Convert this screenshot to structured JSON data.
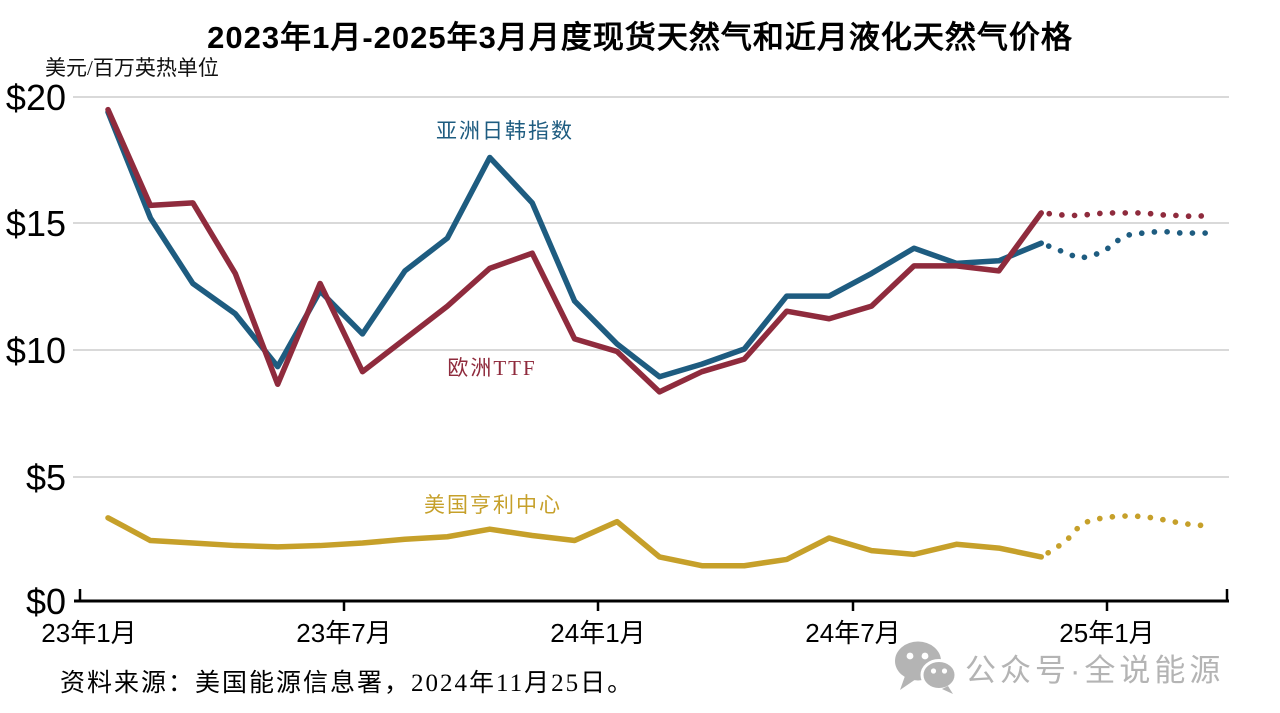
{
  "chart_data": {
    "type": "line",
    "title": "2023年1月-2025年3月月度现货天然气和近月液化天然气价格",
    "unit_label": "美元/百万英热单位",
    "ylim": [
      0,
      20
    ],
    "grid": true,
    "y_ticks": [
      {
        "label": "$20",
        "value": 20
      },
      {
        "label": "$15",
        "value": 15
      },
      {
        "label": "$10",
        "value": 10
      },
      {
        "label": "$5",
        "value": 5
      },
      {
        "label": "$0",
        "value": 0
      }
    ],
    "x_ticks": [
      {
        "label": "23年1月",
        "month": 0
      },
      {
        "label": "23年7月",
        "month": 6
      },
      {
        "label": "24年1月",
        "month": 12
      },
      {
        "label": "24年7月",
        "month": 18
      },
      {
        "label": "25年1月",
        "month": 24
      }
    ],
    "months": [
      "2023-01",
      "2023-02",
      "2023-03",
      "2023-04",
      "2023-05",
      "2023-06",
      "2023-07",
      "2023-08",
      "2023-09",
      "2023-10",
      "2023-11",
      "2023-12",
      "2024-01",
      "2024-02",
      "2024-03",
      "2024-04",
      "2024-05",
      "2024-06",
      "2024-07",
      "2024-08",
      "2024-09",
      "2024-10",
      "2024-11"
    ],
    "forecast_period": "2024-12 to 2025-03 (dotted)",
    "series": [
      {
        "name": "亚洲日韩指数",
        "color": "#1e5c80",
        "history": [
          19.4,
          15.2,
          12.6,
          11.4,
          9.3,
          12.3,
          10.6,
          13.1,
          14.4,
          17.6,
          15.8,
          11.9,
          10.2,
          8.9,
          9.4,
          10.0,
          12.1,
          12.1,
          13.0,
          14.0,
          13.4,
          13.5,
          14.2
        ],
        "forecast": [
          [
            22,
            14.2
          ],
          [
            22.3,
            14.0
          ],
          [
            22.6,
            13.8
          ],
          [
            22.9,
            13.6
          ],
          [
            23.2,
            13.7
          ],
          [
            23.5,
            13.9
          ],
          [
            23.8,
            14.3
          ],
          [
            24.1,
            14.55
          ],
          [
            24.4,
            14.6
          ],
          [
            24.7,
            14.65
          ],
          [
            25.0,
            14.65
          ],
          [
            25.3,
            14.6
          ],
          [
            25.6,
            14.6
          ],
          [
            25.9,
            14.6
          ]
        ]
      },
      {
        "name": "欧洲TTF",
        "color": "#8f2b3d",
        "history": [
          19.5,
          15.7,
          15.8,
          13.0,
          8.6,
          12.6,
          9.1,
          10.4,
          11.7,
          13.2,
          13.8,
          10.4,
          9.9,
          8.3,
          9.1,
          9.6,
          11.5,
          11.2,
          11.7,
          13.3,
          13.3,
          13.1,
          15.4
        ],
        "forecast": [
          [
            22,
            15.4
          ],
          [
            22.3,
            15.35
          ],
          [
            22.6,
            15.3
          ],
          [
            22.9,
            15.3
          ],
          [
            23.2,
            15.35
          ],
          [
            23.5,
            15.4
          ],
          [
            23.8,
            15.4
          ],
          [
            24.1,
            15.4
          ],
          [
            24.4,
            15.4
          ],
          [
            24.7,
            15.35
          ],
          [
            25.0,
            15.3
          ],
          [
            25.3,
            15.3
          ],
          [
            25.6,
            15.25
          ],
          [
            25.9,
            15.3
          ]
        ]
      },
      {
        "name": "美国亨利中心",
        "color": "#c6a02a",
        "history": [
          3.3,
          2.4,
          2.3,
          2.2,
          2.15,
          2.2,
          2.3,
          2.45,
          2.55,
          2.85,
          2.6,
          2.4,
          3.15,
          1.75,
          1.4,
          1.4,
          1.65,
          2.5,
          2.0,
          1.85,
          2.25,
          2.1,
          1.75
        ],
        "forecast": [
          [
            22,
            1.75
          ],
          [
            22.3,
            2.05
          ],
          [
            22.6,
            2.4
          ],
          [
            22.8,
            2.8
          ],
          [
            23.0,
            3.1
          ],
          [
            23.3,
            3.25
          ],
          [
            23.6,
            3.33
          ],
          [
            23.9,
            3.37
          ],
          [
            24.2,
            3.37
          ],
          [
            24.5,
            3.33
          ],
          [
            24.8,
            3.25
          ],
          [
            25.1,
            3.15
          ],
          [
            25.4,
            3.06
          ],
          [
            25.9,
            2.98
          ]
        ]
      }
    ]
  },
  "source_note": "资料来源：美国能源信息署，2024年11月25日。",
  "watermark": {
    "text": "公众号·全说能源",
    "icon": "wechat-icon",
    "color": "#b4b4b4"
  }
}
